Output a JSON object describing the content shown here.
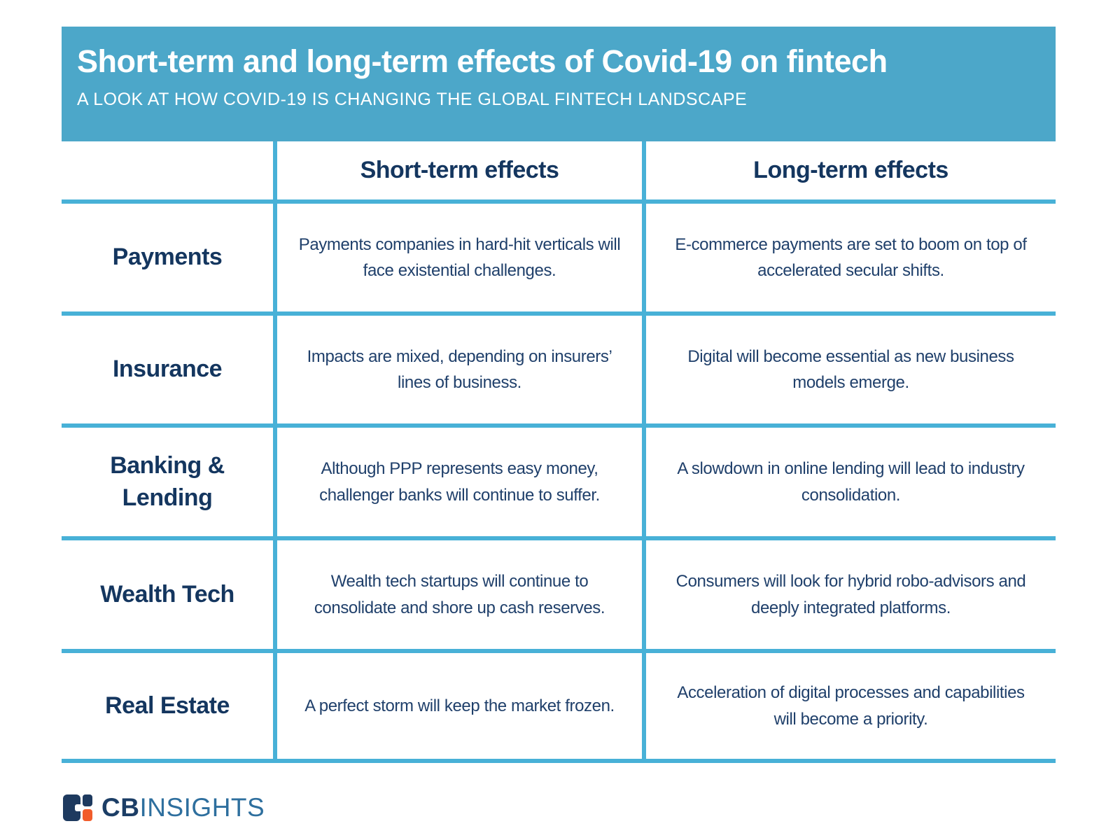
{
  "chart_data": {
    "type": "table",
    "title": "Short-term and long-term effects of Covid-19 on fintech",
    "subtitle": "A LOOK AT HOW COVID-19 IS CHANGING THE GLOBAL FINTECH LANDSCAPE",
    "columns": [
      "",
      "Short-term effects",
      "Long-term effects"
    ],
    "rows": [
      {
        "category": "Payments",
        "short_term": "Payments companies in hard-hit verticals will face existential challenges.",
        "long_term": "E-commerce payments are set to boom on top of accelerated secular shifts."
      },
      {
        "category": "Insurance",
        "short_term": "Impacts are mixed, depending on insurers’ lines of business.",
        "long_term": "Digital will become essential as new business models emerge."
      },
      {
        "category": "Banking & Lending",
        "short_term": "Although PPP represents easy money, challenger banks will continue to suffer.",
        "long_term": "A slowdown in online lending will lead to industry consolidation."
      },
      {
        "category": "Wealth Tech",
        "short_term": "Wealth tech startups will continue to consolidate and shore up cash reserves.",
        "long_term": "Consumers will look for hybrid robo-advisors and deeply integrated platforms."
      },
      {
        "category": "Real Estate",
        "short_term": "A perfect storm will keep the market frozen.",
        "long_term": "Acceleration of digital processes and capabilities will become a priority."
      }
    ],
    "legend_position": "none",
    "grid": true
  },
  "footer": {
    "logo_cb": "CB",
    "logo_insights": "INSIGHTS"
  },
  "colors": {
    "banner_blue": "#4ca7c9",
    "grid_border_blue": "#48b1d7",
    "heading_navy": "#14365f",
    "body_navy": "#20406b",
    "logo_navy": "#1e3a5f",
    "logo_orange": "#f15c2b",
    "logo_insights_blue": "#2e6f9e",
    "background": "#ffffff"
  }
}
